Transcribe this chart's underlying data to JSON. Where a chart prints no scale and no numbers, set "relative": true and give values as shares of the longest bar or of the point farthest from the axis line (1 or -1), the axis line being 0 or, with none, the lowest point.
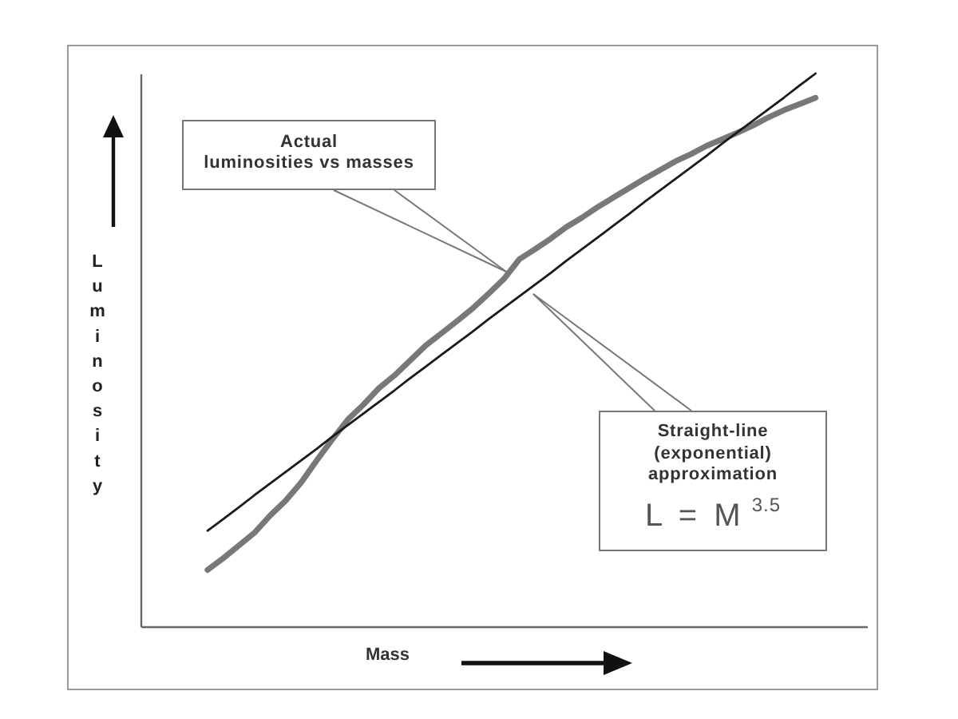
{
  "chart_data": {
    "type": "line",
    "relative": true,
    "xlabel": "Mass",
    "ylabel": "Luminosity",
    "tick_labels": false,
    "line_style": "solid",
    "categories": [
      null,
      null,
      null,
      null,
      null,
      null,
      null,
      null,
      null,
      null,
      null,
      null,
      null,
      null,
      null,
      null,
      null,
      null,
      null,
      null,
      null,
      null,
      null,
      null,
      null,
      null,
      null,
      null,
      null,
      null,
      null,
      null,
      null,
      null,
      null,
      null,
      null,
      null,
      null,
      null,
      null,
      null,
      null,
      null,
      null,
      null,
      null
    ],
    "series": [
      {
        "color": "#606060",
        "values": [
          null,
          null,
          null,
          null,
          0.102,
          0.123,
          0.146,
          0.169,
          0.2,
          0.227,
          0.26,
          0.3,
          0.338,
          0.374,
          0.401,
          0.431,
          0.454,
          0.481,
          0.508,
          0.53,
          0.552,
          0.575,
          0.601,
          0.628,
          0.664,
          0.682,
          0.701,
          0.722,
          0.739,
          0.758,
          0.775,
          0.792,
          0.809,
          0.825,
          0.841,
          0.854,
          0.869,
          0.881,
          0.893,
          0.906,
          0.921,
          0.934,
          0.945,
          0.956,
          null,
          null,
          null
        ]
      },
      {
        "color": "#1a1a1a",
        "values": [
          null,
          null,
          null,
          null,
          0.173,
          0.194,
          0.215,
          0.237,
          0.258,
          0.279,
          0.3,
          0.321,
          0.343,
          0.364,
          0.385,
          0.406,
          0.427,
          0.449,
          0.47,
          0.491,
          0.512,
          0.533,
          0.555,
          0.576,
          0.597,
          0.618,
          0.639,
          0.661,
          0.682,
          0.703,
          0.724,
          0.745,
          0.767,
          0.788,
          0.809,
          0.83,
          0.851,
          0.873,
          0.894,
          0.915,
          0.936,
          0.957,
          0.979,
          1.0,
          null,
          null,
          null
        ]
      }
    ],
    "annotations": [
      "Actual\nluminosities vs masses",
      "Straight-line (exponential) approximation",
      "L = M$^{3.5}$"
    ]
  }
}
